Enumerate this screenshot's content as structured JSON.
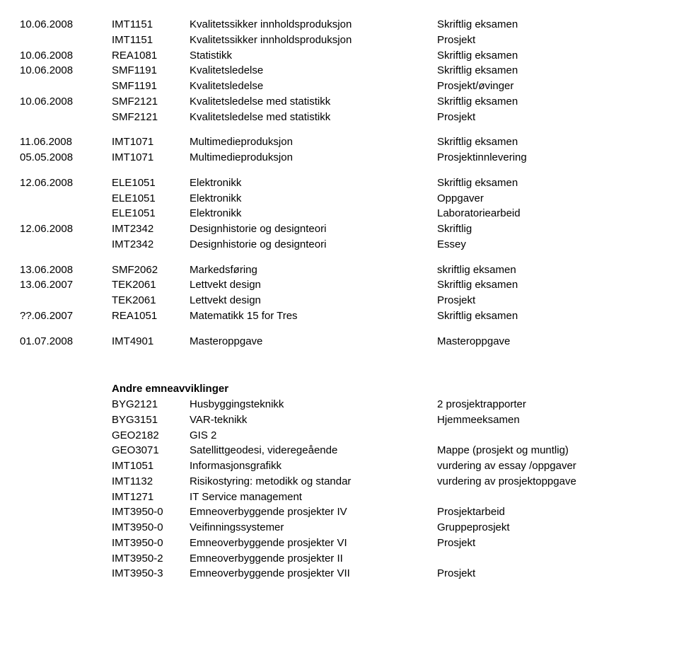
{
  "blocks": [
    [
      {
        "date": "10.06.2008",
        "code": "IMT1151",
        "name": "Kvalitetssikker innholdsproduksjon",
        "type": "Skriftlig eksamen"
      },
      {
        "date": "",
        "code": "IMT1151",
        "name": "Kvalitetssikker innholdsproduksjon",
        "type": "Prosjekt"
      },
      {
        "date": "10.06.2008",
        "code": "REA1081",
        "name": "Statistikk",
        "type": "Skriftlig eksamen"
      },
      {
        "date": "10.06.2008",
        "code": "SMF1191",
        "name": "Kvalitetsledelse",
        "type": "Skriftlig eksamen"
      },
      {
        "date": "",
        "code": "SMF1191",
        "name": "Kvalitetsledelse",
        "type": "Prosjekt/øvinger"
      },
      {
        "date": "10.06.2008",
        "code": "SMF2121",
        "name": "Kvalitetsledelse med statistikk",
        "type": "Skriftlig eksamen"
      },
      {
        "date": "",
        "code": "SMF2121",
        "name": "Kvalitetsledelse med statistikk",
        "type": "Prosjekt"
      }
    ],
    [
      {
        "date": "11.06.2008",
        "code": "IMT1071",
        "name": "Multimedieproduksjon",
        "type": "Skriftlig eksamen"
      },
      {
        "date": "05.05.2008",
        "code": "IMT1071",
        "name": "Multimedieproduksjon",
        "type": "Prosjektinnlevering"
      }
    ],
    [
      {
        "date": "12.06.2008",
        "code": "ELE1051",
        "name": "Elektronikk",
        "type": "Skriftlig eksamen"
      },
      {
        "date": "",
        "code": "ELE1051",
        "name": "Elektronikk",
        "type": "Oppgaver"
      },
      {
        "date": "",
        "code": "ELE1051",
        "name": "Elektronikk",
        "type": "Laboratoriearbeid"
      },
      {
        "date": "12.06.2008",
        "code": "IMT2342",
        "name": "Designhistorie og designteori",
        "type": "Skriftlig"
      },
      {
        "date": "",
        "code": "IMT2342",
        "name": "Designhistorie og designteori",
        "type": "Essey"
      }
    ],
    [
      {
        "date": "13.06.2008",
        "code": "SMF2062",
        "name": "Markedsføring",
        "type": "skriftlig eksamen"
      },
      {
        "date": "13.06.2007",
        "code": "TEK2061",
        "name": "Lettvekt design",
        "type": "Skriftlig eksamen"
      },
      {
        "date": "",
        "code": "TEK2061",
        "name": "Lettvekt design",
        "type": "Prosjekt"
      },
      {
        "date": "??.06.2007",
        "code": "REA1051",
        "name": "Matematikk 15 for Tres",
        "type": "Skriftlig eksamen"
      }
    ],
    [
      {
        "date": "01.07.2008",
        "code": "IMT4901",
        "name": "Masteroppgave",
        "type": "Masteroppgave"
      }
    ]
  ],
  "section2": {
    "heading": "Andre emneavviklinger",
    "rows": [
      {
        "code": "BYG2121",
        "name": "Husbyggingsteknikk",
        "type": "2 prosjektrapporter"
      },
      {
        "code": "BYG3151",
        "name": "VAR-teknikk",
        "type": "Hjemmeeksamen"
      },
      {
        "code": "GEO2182",
        "name": "GIS 2",
        "type": ""
      },
      {
        "code": "GEO3071",
        "name": "Satellittgeodesi, videregeående",
        "type": "Mappe (prosjekt og muntlig)"
      },
      {
        "code": "IMT1051",
        "name": "Informasjonsgrafikk",
        "type": "vurdering av essay /oppgaver"
      },
      {
        "code": "IMT1132",
        "name": "Risikostyring: metodikk og standar",
        "type": "vurdering av prosjektoppgave"
      },
      {
        "code": "IMT1271",
        "name": "IT Service management",
        "type": ""
      },
      {
        "code": "IMT3950-0",
        "name": "Emneoverbyggende prosjekter IV",
        "type": "Prosjektarbeid"
      },
      {
        "code": "IMT3950-0",
        "name": "Veifinningssystemer",
        "type": "Gruppeprosjekt"
      },
      {
        "code": "IMT3950-0",
        "name": "Emneoverbyggende prosjekter VI",
        "type": "Prosjekt"
      },
      {
        "code": "IMT3950-2",
        "name": "Emneoverbyggende prosjekter II",
        "type": ""
      },
      {
        "code": "IMT3950-3",
        "name": "Emneoverbyggende prosjekter VII",
        "type": "Prosjekt"
      }
    ]
  }
}
